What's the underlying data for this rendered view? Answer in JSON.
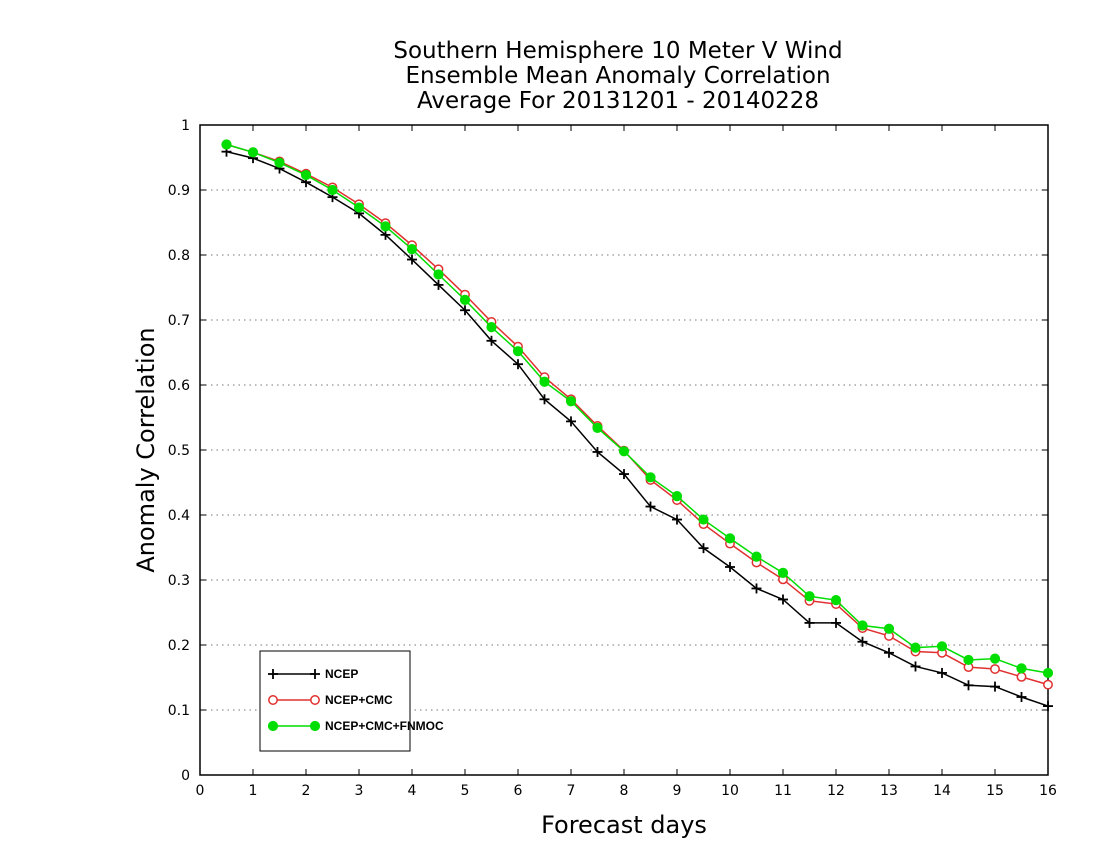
{
  "chart_data": {
    "type": "line",
    "title_lines": [
      "Southern Hemisphere 10 Meter V Wind",
      "Ensemble Mean Anomaly Correlation",
      "Average For 20131201 - 20140228"
    ],
    "xlabel": "Forecast days",
    "ylabel": "Anomaly Correlation",
    "xlim": [
      0,
      16
    ],
    "ylim": [
      0,
      1
    ],
    "xticks": [
      0,
      1,
      2,
      3,
      4,
      5,
      6,
      7,
      8,
      9,
      10,
      11,
      12,
      13,
      14,
      15,
      16
    ],
    "yticks": [
      0,
      0.1,
      0.2,
      0.3,
      0.4,
      0.5,
      0.6,
      0.7,
      0.8,
      0.9,
      1
    ],
    "ytick_labels": [
      "0",
      "0.1",
      "0.2",
      "0.3",
      "0.4",
      "0.5",
      "0.6",
      "0.7",
      "0.8",
      "0.9",
      "1"
    ],
    "grid": "horizontal dotted",
    "legend_position": "bottom-left",
    "x": [
      0.5,
      1,
      1.5,
      2,
      2.5,
      3,
      3.5,
      4,
      4.5,
      5,
      5.5,
      6,
      6.5,
      7,
      7.5,
      8,
      8.5,
      9,
      9.5,
      10,
      10.5,
      11,
      11.5,
      12,
      12.5,
      13,
      13.5,
      14,
      14.5,
      15,
      15.5,
      16
    ],
    "series": [
      {
        "name": "NCEP",
        "color": "#000000",
        "marker": "plus",
        "values": [
          0.959,
          0.949,
          0.933,
          0.912,
          0.889,
          0.864,
          0.831,
          0.793,
          0.754,
          0.715,
          0.668,
          0.632,
          0.578,
          0.544,
          0.497,
          0.463,
          0.413,
          0.393,
          0.349,
          0.32,
          0.287,
          0.27,
          0.234,
          0.234,
          0.205,
          0.188,
          0.167,
          0.157,
          0.138,
          0.136,
          0.12,
          0.106
        ]
      },
      {
        "name": "NCEP+CMC",
        "color": "#e0302f",
        "marker": "open-circle",
        "values": [
          0.97,
          0.958,
          0.944,
          0.925,
          0.904,
          0.878,
          0.849,
          0.815,
          0.778,
          0.739,
          0.697,
          0.659,
          0.612,
          0.578,
          0.537,
          0.499,
          0.454,
          0.423,
          0.386,
          0.356,
          0.327,
          0.301,
          0.268,
          0.263,
          0.226,
          0.214,
          0.19,
          0.188,
          0.166,
          0.163,
          0.151,
          0.139
        ]
      },
      {
        "name": "NCEP+CMC+FNMOC",
        "color": "#00dd00",
        "marker": "filled-circle",
        "values": [
          0.97,
          0.958,
          0.942,
          0.923,
          0.9,
          0.873,
          0.844,
          0.809,
          0.77,
          0.731,
          0.689,
          0.652,
          0.605,
          0.575,
          0.534,
          0.498,
          0.458,
          0.429,
          0.393,
          0.364,
          0.336,
          0.311,
          0.275,
          0.269,
          0.23,
          0.225,
          0.196,
          0.198,
          0.177,
          0.179,
          0.164,
          0.157
        ]
      }
    ]
  }
}
